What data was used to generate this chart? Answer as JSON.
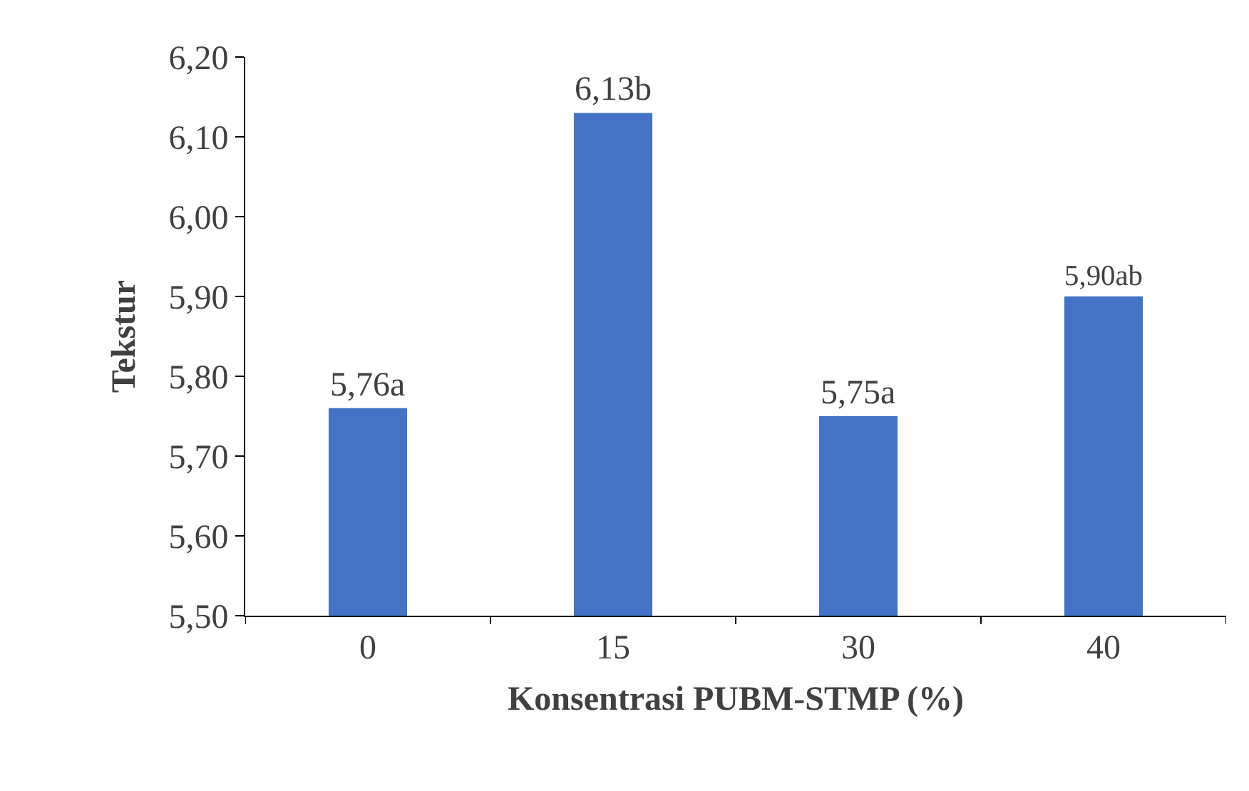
{
  "chart_data": {
    "type": "bar",
    "xlabel": "Konsentrasi PUBM-STMP (%)",
    "ylabel": "Tekstur",
    "categories": [
      "0",
      "15",
      "30",
      "40"
    ],
    "values": [
      5.76,
      6.13,
      5.75,
      5.9
    ],
    "value_labels": [
      "5,76a",
      "6,13b",
      "5,75a",
      "5,90ab"
    ],
    "color": "#4472c4",
    "ylim": [
      5.5,
      6.2
    ],
    "yticks": [
      {
        "value": 5.5,
        "label": "5,50"
      },
      {
        "value": 5.6,
        "label": "5,60"
      },
      {
        "value": 5.7,
        "label": "5,70"
      },
      {
        "value": 5.8,
        "label": "5,80"
      },
      {
        "value": 5.9,
        "label": "5,90"
      },
      {
        "value": 6.0,
        "label": "6,00"
      },
      {
        "value": 6.1,
        "label": "6,10"
      },
      {
        "value": 6.2,
        "label": "6,20"
      }
    ]
  }
}
